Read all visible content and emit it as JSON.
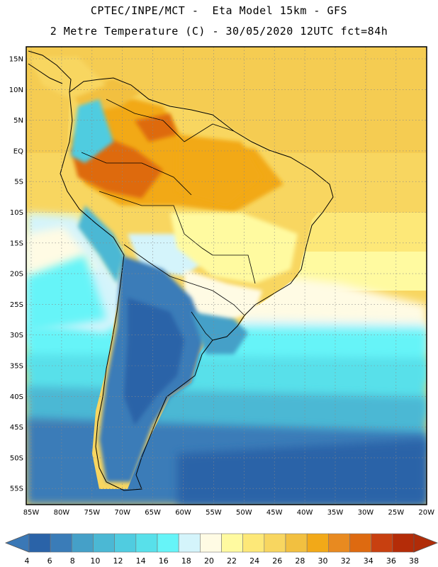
{
  "title": {
    "line1": "CPTEC/INPE/MCT -  Eta Model 15km - GFS",
    "line2": "2 Metre Temperature (C) - 30/05/2020 12UTC fct=84h"
  },
  "map": {
    "lat_labels": [
      "15N",
      "10N",
      "5N",
      "EQ",
      "5S",
      "10S",
      "15S",
      "20S",
      "25S",
      "30S",
      "35S",
      "40S",
      "45S",
      "50S",
      "55S"
    ],
    "lon_labels": [
      "85W",
      "80W",
      "75W",
      "70W",
      "65W",
      "60W",
      "55W",
      "50W",
      "45W",
      "40W",
      "35W",
      "30W",
      "25W",
      "20W"
    ]
  },
  "colorbar": {
    "values": [
      "4",
      "6",
      "8",
      "10",
      "12",
      "14",
      "16",
      "18",
      "20",
      "22",
      "24",
      "26",
      "28",
      "30",
      "32",
      "34",
      "36",
      "38"
    ],
    "colors": [
      "#2a63a8",
      "#3a7cb8",
      "#45a0c8",
      "#4bb8d4",
      "#50cce0",
      "#58e0ea",
      "#66f4f8",
      "#d4f4fb",
      "#fffbe4",
      "#fffaa0",
      "#fde878",
      "#f8d660",
      "#f2c040",
      "#f2a918",
      "#e88a20",
      "#de6a10",
      "#c84010",
      "#b42c08"
    ],
    "low_color": "#3a78b6",
    "high_color": "#b02c08"
  }
}
